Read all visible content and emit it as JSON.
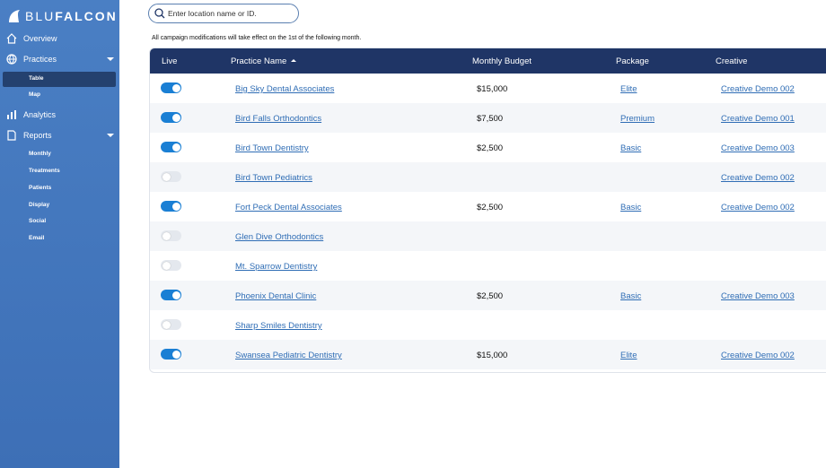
{
  "logo": {
    "prefix": "BLU",
    "suffix": "FALCON"
  },
  "nav": {
    "items": [
      {
        "label": "Overview",
        "level": 1
      },
      {
        "label": "Practices",
        "level": 1,
        "expanded": true
      },
      {
        "label": "Table",
        "level": 2,
        "active": true
      },
      {
        "label": "Map",
        "level": 2
      },
      {
        "label": "Analytics",
        "level": 1
      },
      {
        "label": "Reports",
        "level": 1,
        "expanded": true
      },
      {
        "label": "Monthly",
        "level": 2
      },
      {
        "label": "Treatments",
        "level": 2
      },
      {
        "label": "Patients",
        "level": 2
      },
      {
        "label": "Display",
        "level": 2
      },
      {
        "label": "Social",
        "level": 2
      },
      {
        "label": "Email",
        "level": 2
      }
    ]
  },
  "search": {
    "placeholder": "Enter location name or ID."
  },
  "notice": "All campaign modifications will take effect on the 1st of the following month.",
  "table": {
    "headers": [
      "Live",
      "Practice Name",
      "Monthly Budget",
      "Package",
      "Creative"
    ],
    "rows": [
      {
        "live": true,
        "name": "Big Sky Dental Associates",
        "budget": "$15,000",
        "package": "Elite",
        "creative": "Creative Demo 002"
      },
      {
        "live": true,
        "name": "Bird Falls Orthodontics",
        "budget": "$7,500",
        "package": "Premium",
        "creative": "Creative Demo 001"
      },
      {
        "live": true,
        "name": "Bird Town Dentistry",
        "budget": "$2,500",
        "package": "Basic",
        "creative": "Creative Demo 003"
      },
      {
        "live": false,
        "name": "Bird Town Pediatrics",
        "creative": "Creative Demo 002"
      },
      {
        "live": true,
        "name": "Fort Peck Dental Associates",
        "budget": "$2,500",
        "package": "Basic",
        "creative": "Creative Demo 002"
      },
      {
        "live": false,
        "name": "Glen Dive Orthodontics"
      },
      {
        "live": false,
        "name": "Mt. Sparrow Dentistry"
      },
      {
        "live": true,
        "name": "Phoenix Dental Clinic",
        "budget": "$2,500",
        "package": "Basic",
        "creative": "Creative Demo 003"
      },
      {
        "live": false,
        "name": "Sharp Smiles Dentistry"
      },
      {
        "live": true,
        "name": "Swansea Pediatric Dentistry",
        "budget": "$15,000",
        "package": "Elite",
        "creative": "Creative Demo 002"
      }
    ]
  }
}
